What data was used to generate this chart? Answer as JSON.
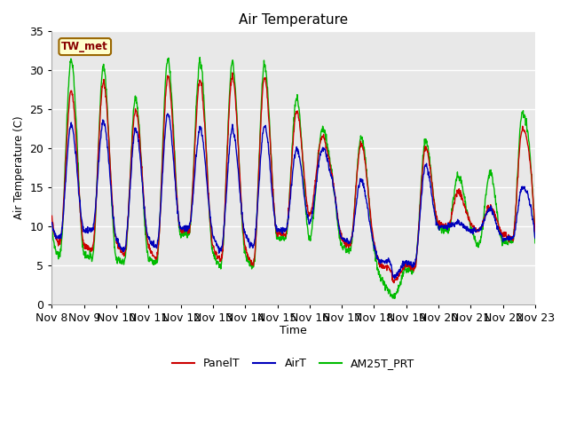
{
  "title": "Air Temperature",
  "ylabel": "Air Temperature (C)",
  "xlabel": "Time",
  "ylim": [
    0,
    35
  ],
  "ytick_values": [
    0,
    5,
    10,
    15,
    20,
    25,
    30,
    35
  ],
  "xtick_labels": [
    "Nov 8",
    "Nov 9",
    "Nov 10",
    "Nov 11",
    "Nov 12",
    "Nov 13",
    "Nov 14",
    "Nov 15",
    "Nov 16",
    "Nov 17",
    "Nov 18",
    "Nov 19",
    "Nov 20",
    "Nov 21",
    "Nov 22",
    "Nov 23"
  ],
  "legend_labels": [
    "PanelT",
    "AirT",
    "AM25T_PRT"
  ],
  "legend_colors": [
    "#cc0000",
    "#0000bb",
    "#00bb00"
  ],
  "station_label": "TW_met",
  "station_box_color": "#ffffcc",
  "station_border_color": "#996600",
  "station_text_color": "#880000",
  "fig_bg_color": "#ffffff",
  "plot_bg_color": "#e8e8e8",
  "grid_color": "#ffffff",
  "line_width": 1.0,
  "num_points": 1500
}
